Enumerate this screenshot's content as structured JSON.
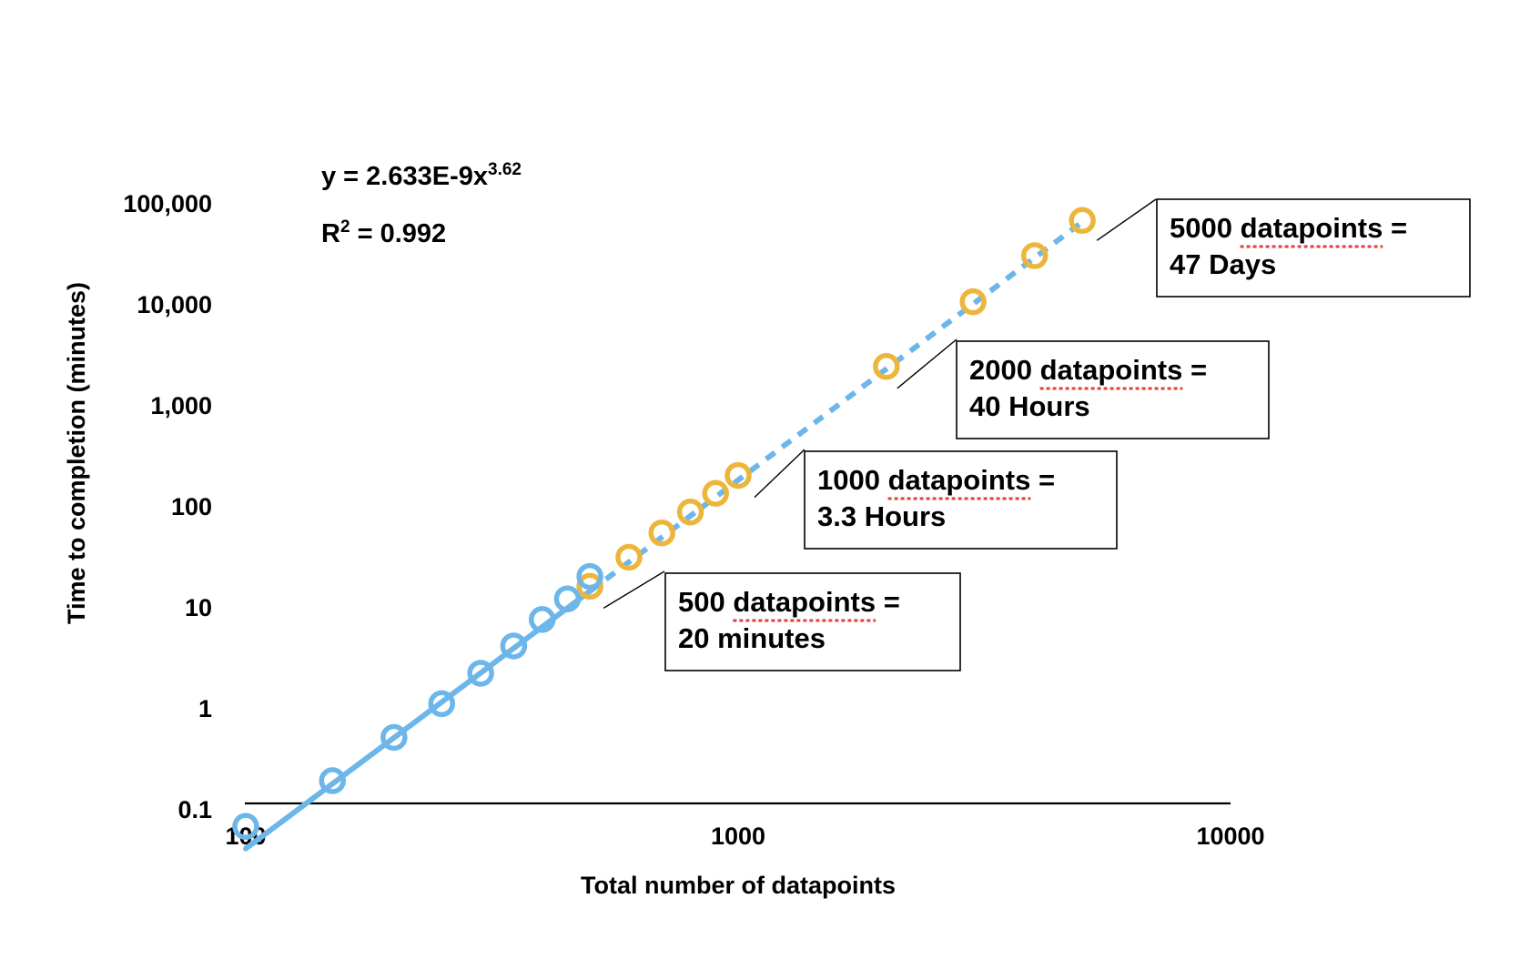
{
  "chart_data": {
    "type": "scatter",
    "xlabel": "Total number of datapoints",
    "ylabel": "Time to completion (minutes)",
    "x_scale": "log",
    "y_scale": "log",
    "xlim": [
      100,
      10000
    ],
    "ylim": [
      0.01,
      100000
    ],
    "x_ticks": [
      {
        "value": 100,
        "label": "100"
      },
      {
        "value": 1000,
        "label": "1000"
      },
      {
        "value": 10000,
        "label": "10000"
      }
    ],
    "y_ticks": [
      {
        "value": 0.1,
        "label": "0.1"
      },
      {
        "value": 1,
        "label": "1"
      },
      {
        "value": 10,
        "label": "10"
      },
      {
        "value": 100,
        "label": "100"
      },
      {
        "value": 1000,
        "label": "1,000"
      },
      {
        "value": 10000,
        "label": "10,000"
      },
      {
        "value": 100000,
        "label": "100,000"
      }
    ],
    "grid": false,
    "equation": {
      "prefix": "y = 2.633E-9x",
      "exponent": "3.62"
    },
    "r_squared": {
      "base": "R",
      "sup": "2",
      "rest": " = 0.992"
    },
    "trendline": {
      "coef": 2.633e-09,
      "power": 3.62,
      "solid_range": [
        100,
        500
      ],
      "dashed_range": [
        500,
        5000
      ]
    },
    "series": [
      {
        "kind": "measured",
        "color": "#6cb6ea",
        "points": [
          [
            100,
            0.067
          ],
          [
            150,
            0.19
          ],
          [
            200,
            0.51
          ],
          [
            250,
            1.1
          ],
          [
            300,
            2.2
          ],
          [
            350,
            4.1
          ],
          [
            400,
            7.5
          ],
          [
            450,
            12
          ],
          [
            500,
            20
          ]
        ]
      },
      {
        "kind": "projected",
        "color": "#ecb63c",
        "points": [
          [
            500,
            16
          ],
          [
            600,
            31
          ],
          [
            700,
            54
          ],
          [
            800,
            87
          ],
          [
            900,
            133
          ],
          [
            1000,
            200
          ],
          [
            2000,
            2400
          ],
          [
            3000,
            10500
          ],
          [
            4000,
            30000
          ],
          [
            5000,
            67000
          ]
        ]
      }
    ],
    "annotations": [
      {
        "line1_num": "500",
        "line1_word": "datapoints",
        "line1_eq": "=",
        "line2": "20 minutes",
        "x": 500,
        "y": 16
      },
      {
        "line1_num": "1000",
        "line1_word": "datapoints",
        "line1_eq": "=",
        "line2": "3.3 Hours",
        "x": 1000,
        "y": 200
      },
      {
        "line1_num": "2000",
        "line1_word": "datapoints",
        "line1_eq": "=",
        "line2": "40 Hours",
        "x": 2000,
        "y": 2400
      },
      {
        "line1_num": "5000",
        "line1_word": "datapoints",
        "line1_eq": "=",
        "line2": "47 Days",
        "x": 5000,
        "y": 67000
      }
    ]
  }
}
